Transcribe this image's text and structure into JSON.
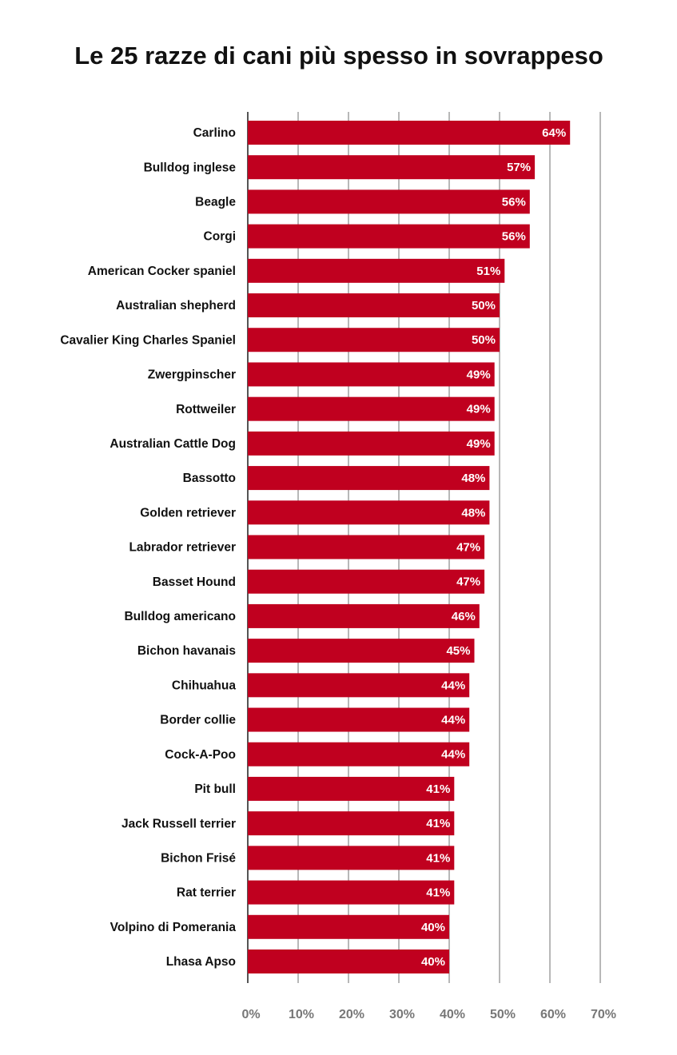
{
  "chart_data": {
    "type": "barh",
    "title": "Le 25 razze di cani più spesso in sovrappeso",
    "categories": [
      "Carlino",
      "Bulldog inglese",
      "Beagle",
      "Corgi",
      "American Cocker spaniel",
      "Australian shepherd",
      "Cavalier King Charles Spaniel",
      "Zwergpinscher",
      "Rottweiler",
      "Australian Cattle Dog",
      "Bassotto",
      "Golden retriever",
      "Labrador retriever",
      "Basset Hound",
      "Bulldog americano",
      "Bichon havanais",
      "Chihuahua",
      "Border collie",
      "Cock-A-Poo",
      "Pit bull",
      "Jack Russell terrier",
      "Bichon Frisé",
      "Rat terrier",
      "Volpino di Pomerania",
      "Lhasa Apso"
    ],
    "values": [
      64,
      57,
      56,
      56,
      51,
      50,
      50,
      49,
      49,
      49,
      48,
      48,
      47,
      47,
      46,
      45,
      44,
      44,
      44,
      41,
      41,
      41,
      41,
      40,
      40
    ],
    "value_labels": [
      "64%",
      "57%",
      "56%",
      "56%",
      "51%",
      "50%",
      "50%",
      "49%",
      "49%",
      "49%",
      "48%",
      "48%",
      "47%",
      "47%",
      "46%",
      "45%",
      "44%",
      "44%",
      "44%",
      "41%",
      "41%",
      "41%",
      "41%",
      "40%",
      "40%"
    ],
    "color": "#c0001f",
    "xlim": [
      0,
      70
    ],
    "xticks": [
      {
        "value": 0,
        "label": "0%"
      },
      {
        "value": 10,
        "label": "10%"
      },
      {
        "value": 20,
        "label": "20%"
      },
      {
        "value": 30,
        "label": "30%"
      },
      {
        "value": 40,
        "label": "40%"
      },
      {
        "value": 50,
        "label": "50%"
      },
      {
        "value": 60,
        "label": "60%"
      },
      {
        "value": 70,
        "label": "70%"
      }
    ],
    "grid": true
  }
}
